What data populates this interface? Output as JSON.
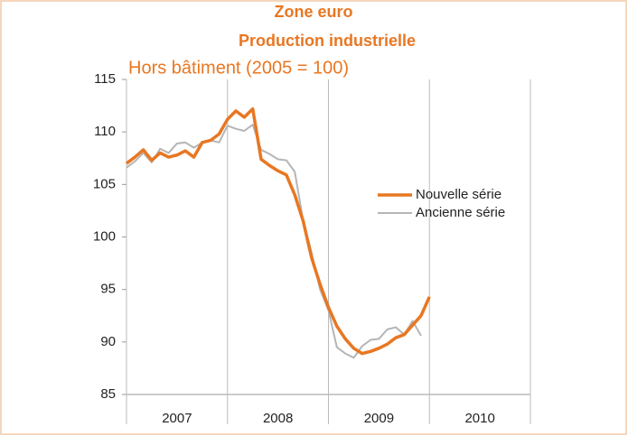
{
  "chart_data": {
    "type": "line",
    "title": "Zone euro",
    "subtitle": "Production industrielle",
    "ylabel": "Hors bâtiment (2005 = 100)",
    "categories": [
      "2007",
      "2008",
      "2009",
      "2010"
    ],
    "x": [
      2007,
      2007.0833,
      2007.1667,
      2007.25,
      2007.3333,
      2007.4167,
      2007.5,
      2007.5833,
      2007.6667,
      2007.75,
      2007.8333,
      2007.9167,
      2008,
      2008.0833,
      2008.1667,
      2008.25,
      2008.3333,
      2008.4167,
      2008.5,
      2008.5833,
      2008.6667,
      2008.75,
      2008.8333,
      2008.9167,
      2009,
      2009.0833,
      2009.1667,
      2009.25,
      2009.3333,
      2009.4167,
      2009.5,
      2009.5833,
      2009.6667,
      2009.75,
      2009.8333,
      2009.9167,
      2010
    ],
    "xlim": [
      2007,
      2011
    ],
    "xticks": [
      2007,
      2008,
      2009,
      2010,
      2011
    ],
    "ylim": [
      85,
      115
    ],
    "yticks": [
      85,
      90,
      95,
      100,
      105,
      110,
      115
    ],
    "legend": "right",
    "series": [
      {
        "name": "Nouvelle série",
        "color": "#e87722",
        "values": [
          107.0,
          107.6,
          108.3,
          107.3,
          108.0,
          107.6,
          107.8,
          108.2,
          107.6,
          109.0,
          109.2,
          109.8,
          111.2,
          112.0,
          111.4,
          112.2,
          107.4,
          106.8,
          106.3,
          105.9,
          104.0,
          101.5,
          98.0,
          95.5,
          93.3,
          91.5,
          90.3,
          89.4,
          88.9,
          89.1,
          89.4,
          89.8,
          90.4,
          90.7,
          91.6,
          92.5,
          94.3
        ]
      },
      {
        "name": "Ancienne série",
        "color": "#b5b5b5",
        "values": [
          106.6,
          107.2,
          108.0,
          107.1,
          108.4,
          108.0,
          108.9,
          109.0,
          108.5,
          109.0,
          109.2,
          109.0,
          110.6,
          110.3,
          110.1,
          110.7,
          108.3,
          107.9,
          107.4,
          107.3,
          106.2,
          101.5,
          98.5,
          95.0,
          93.0,
          89.5,
          88.9,
          88.5,
          89.6,
          90.2,
          90.3,
          91.2,
          91.4,
          90.7,
          92.0,
          90.6,
          null
        ]
      }
    ]
  }
}
